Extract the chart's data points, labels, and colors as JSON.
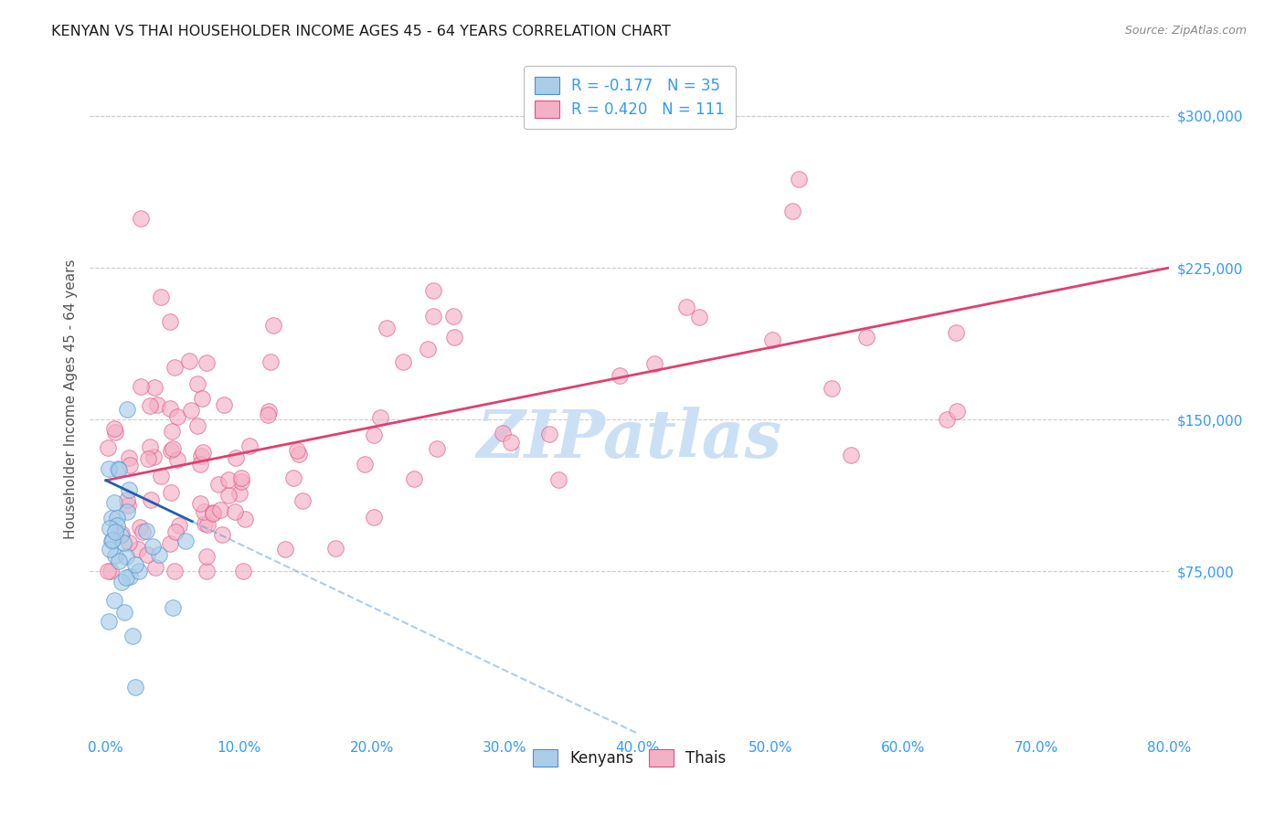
{
  "title": "KENYAN VS THAI HOUSEHOLDER INCOME AGES 45 - 64 YEARS CORRELATION CHART",
  "source": "Source: ZipAtlas.com",
  "ylabel": "Householder Income Ages 45 - 64 years",
  "ytick_labels": [
    "$75,000",
    "$150,000",
    "$225,000",
    "$300,000"
  ],
  "ytick_values": [
    75000,
    150000,
    225000,
    300000
  ],
  "xlabel_ticks": [
    "0.0%",
    "10.0%",
    "20.0%",
    "30.0%",
    "40.0%",
    "50.0%",
    "60.0%",
    "70.0%",
    "80.0%"
  ],
  "x_tick_vals": [
    0.0,
    0.1,
    0.2,
    0.3,
    0.4,
    0.5,
    0.6,
    0.7,
    0.8
  ],
  "xlim": [
    -0.012,
    0.8
  ],
  "ylim": [
    -5000,
    325000
  ],
  "kenyan_R": -0.177,
  "kenyan_N": 35,
  "thai_R": 0.42,
  "thai_N": 111,
  "legend_label1": "R = -0.177   N = 35",
  "legend_label2": "R = 0.420   N = 111",
  "kenyan_face_color": "#aacde8",
  "thai_face_color": "#f4b0c5",
  "kenyan_edge_color": "#4a90d0",
  "thai_edge_color": "#e05080",
  "kenyan_line_color": "#2060b0",
  "thai_line_color": "#e04070",
  "grid_color": "#cccccc",
  "title_color": "#1a1a1a",
  "source_color": "#888888",
  "ylabel_color": "#555555",
  "tick_color": "#3399ff",
  "legend_text_color": "#3399ff",
  "watermark_color": "#cce0f5",
  "background_color": "#ffffff",
  "scatter_size": 160,
  "scatter_alpha": 0.65,
  "seed": 12
}
